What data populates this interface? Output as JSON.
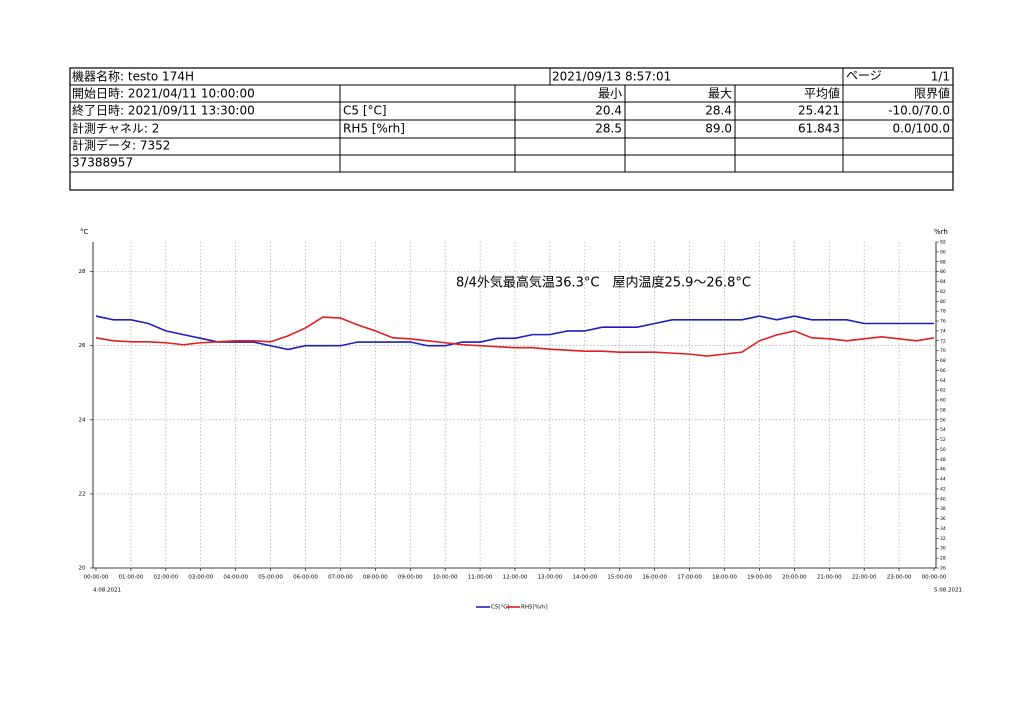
{
  "table": {
    "rows": [
      [
        "機器名称: testo 174H",
        "2021/09/13 8:57:01",
        "ページ",
        "1/1"
      ],
      [
        "開始日時: 2021/04/11 10:00:00",
        "最小",
        "最大",
        "平均値",
        "限界値"
      ],
      [
        "終了日時: 2021/09/11 13:30:00",
        "C5 [°C]",
        "20.4",
        "28.4",
        "25.421",
        "-10.0/70.0"
      ],
      [
        "計測チャネル: 2",
        "RH5 [%rh]",
        "28.5",
        "89.0",
        "61.843",
        "0.0/100.0"
      ],
      [
        "計測データ: 7352"
      ],
      [
        "37388957"
      ]
    ]
  },
  "chart_data": {
    "type": "line",
    "annotation": "8/4外気最高気温36.3°C　屋内温度25.9～26.8°C",
    "y_label": "°C",
    "y2_label": "%rh",
    "x_start_label": "4.08.2021",
    "x_end_label": "5.08.2021",
    "x": [
      0,
      0.5,
      1,
      1.5,
      2,
      2.5,
      3,
      3.5,
      4,
      4.5,
      5,
      5.5,
      6,
      6.5,
      7,
      7.5,
      8,
      8.5,
      9,
      9.5,
      10,
      10.5,
      11,
      11.5,
      12,
      12.5,
      13,
      13.5,
      14,
      14.5,
      15,
      15.5,
      16,
      16.5,
      17,
      17.5,
      18,
      18.5,
      19,
      19.5,
      20,
      20.5,
      21,
      21.5,
      22,
      22.5,
      23,
      23.5,
      24
    ],
    "xlim": [
      0,
      24
    ],
    "xticks": [
      {
        "value": 0,
        "label": "00:00:00"
      },
      {
        "value": 1,
        "label": "01:00:00"
      },
      {
        "value": 2,
        "label": "02:00:00"
      },
      {
        "value": 3,
        "label": "03:00:00"
      },
      {
        "value": 4,
        "label": "04:00:00"
      },
      {
        "value": 5,
        "label": "05:00:00"
      },
      {
        "value": 6,
        "label": "06:00:00"
      },
      {
        "value": 7,
        "label": "07:00:00"
      },
      {
        "value": 8,
        "label": "08:00:00"
      },
      {
        "value": 9,
        "label": "09:00:00"
      },
      {
        "value": 10,
        "label": "10:00:00"
      },
      {
        "value": 11,
        "label": "11:00:00"
      },
      {
        "value": 12,
        "label": "12:00:00"
      },
      {
        "value": 13,
        "label": "13:00:00"
      },
      {
        "value": 14,
        "label": "14:00:00"
      },
      {
        "value": 15,
        "label": "15:00:00"
      },
      {
        "value": 16,
        "label": "16:00:00"
      },
      {
        "value": 17,
        "label": "17:00:00"
      },
      {
        "value": 18,
        "label": "18:00:00"
      },
      {
        "value": 19,
        "label": "19:00:00"
      },
      {
        "value": 20,
        "label": "20:00:00"
      },
      {
        "value": 21,
        "label": "21:00:00"
      },
      {
        "value": 22,
        "label": "22:00:00"
      },
      {
        "value": 23,
        "label": "23:00:00"
      },
      {
        "value": 24,
        "label": "00:00:00"
      }
    ],
    "ylim": [
      20,
      28.8
    ],
    "yticks": [
      20,
      22,
      24,
      26,
      28
    ],
    "y2lim": [
      26,
      92
    ],
    "y2ticks": [
      26,
      28,
      30,
      32,
      34,
      36,
      38,
      40,
      42,
      44,
      46,
      48,
      50,
      52,
      54,
      56,
      58,
      60,
      62,
      64,
      66,
      68,
      70,
      72,
      74,
      76,
      78,
      80,
      82,
      84,
      86,
      88,
      90,
      92
    ],
    "grid": true,
    "series": [
      {
        "name": "C5[°C]",
        "color": "#1f1fbf",
        "values": [
          26.8,
          26.7,
          26.7,
          26.6,
          26.4,
          26.3,
          26.2,
          26.1,
          26.1,
          26.1,
          26.0,
          25.9,
          26.0,
          26.0,
          26.0,
          26.1,
          26.1,
          26.1,
          26.1,
          26.0,
          26.0,
          26.1,
          26.1,
          26.2,
          26.2,
          26.3,
          26.3,
          26.4,
          26.4,
          26.5,
          26.5,
          26.5,
          26.6,
          26.7,
          26.7,
          26.7,
          26.7,
          26.7,
          26.8,
          26.7,
          26.8,
          26.7,
          26.7,
          26.7,
          26.6,
          26.6,
          26.6,
          26.6,
          26.6
        ]
      },
      {
        "name": "RH5[%rh]",
        "color": "#e02020",
        "axis": "y2",
        "values": [
          72.6,
          72.0,
          71.8,
          71.8,
          71.6,
          71.2,
          71.6,
          71.8,
          72.0,
          72.0,
          71.8,
          73.0,
          74.6,
          76.8,
          76.6,
          75.2,
          74.0,
          72.6,
          72.4,
          72.0,
          71.6,
          71.2,
          71.0,
          70.8,
          70.6,
          70.6,
          70.3,
          70.1,
          69.9,
          69.9,
          69.7,
          69.7,
          69.7,
          69.5,
          69.3,
          68.9,
          69.3,
          69.7,
          72.0,
          73.2,
          74.0,
          72.6,
          72.4,
          72.0,
          72.4,
          72.8,
          72.4,
          72.0,
          72.6
        ]
      }
    ]
  }
}
